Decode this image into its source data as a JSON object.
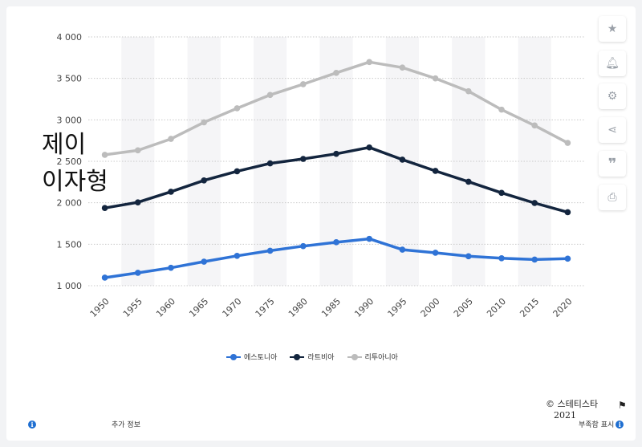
{
  "chart_data": {
    "type": "line",
    "title": "",
    "xlabel": "",
    "ylabel": "",
    "x": [
      "1950",
      "1955",
      "1960",
      "1965",
      "1970",
      "1975",
      "1980",
      "1985",
      "1990",
      "1995",
      "2000",
      "2005",
      "2010",
      "2015",
      "2020"
    ],
    "ylim": [
      1000,
      4000
    ],
    "yticks": [
      {
        "value": 1000,
        "label": "1 000"
      },
      {
        "value": 1500,
        "label": "1 500"
      },
      {
        "value": 2000,
        "label": "2 000"
      },
      {
        "value": 2500,
        "label": "2 500"
      },
      {
        "value": 3000,
        "label": "3 000"
      },
      {
        "value": 3500,
        "label": "3 500"
      },
      {
        "value": 4000,
        "label": "4 000"
      }
    ],
    "grid": true,
    "legend_position": "bottom",
    "series": [
      {
        "name": "에스토니아",
        "color": "#2f73d6",
        "values": [
          1097,
          1155,
          1216,
          1290,
          1360,
          1422,
          1477,
          1524,
          1565,
          1435,
          1397,
          1355,
          1331,
          1315,
          1326
        ]
      },
      {
        "name": "라트비아",
        "color": "#13253e",
        "values": [
          1937,
          2005,
          2133,
          2270,
          2380,
          2475,
          2529,
          2590,
          2667,
          2520,
          2384,
          2254,
          2120,
          1997,
          1886
        ]
      },
      {
        "name": "리투아니아",
        "color": "#bcbcbc",
        "values": [
          2578,
          2632,
          2770,
          2970,
          3139,
          3300,
          3430,
          3566,
          3697,
          3630,
          3500,
          3345,
          3123,
          2932,
          2722
        ]
      }
    ]
  },
  "overlay_text": {
    "line1": "제이",
    "line2": "이자형"
  },
  "source": {
    "name": "© 스테티스타",
    "year": "2021"
  },
  "footer": {
    "more_info": "추가 정보",
    "show_source": "부족함 표시"
  },
  "sidebar_icons": [
    "star-icon",
    "bell-icon",
    "gear-icon",
    "share-icon",
    "quote-icon",
    "print-icon"
  ]
}
